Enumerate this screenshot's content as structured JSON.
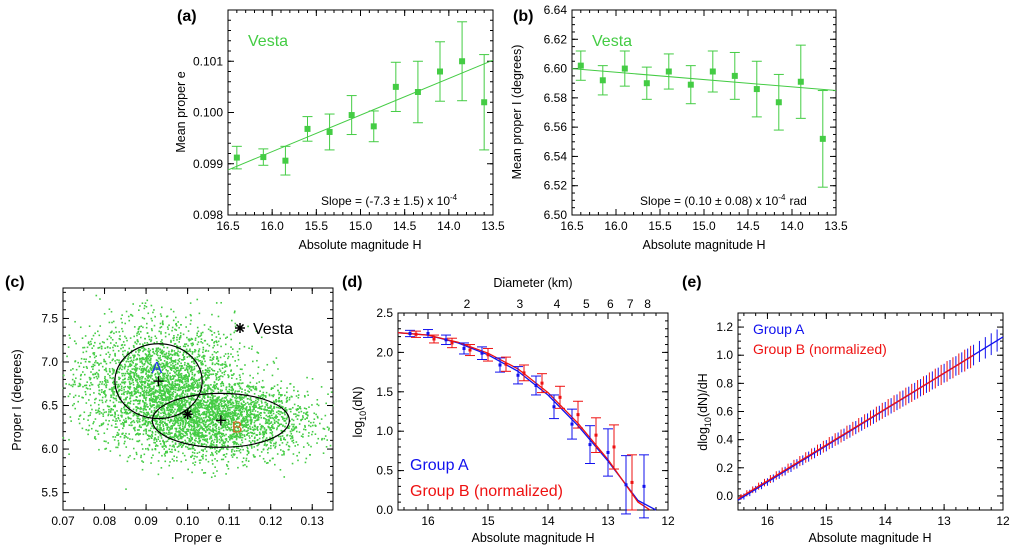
{
  "chart_data": [
    {
      "panel": "(a)",
      "type": "scatter",
      "annotation": "Vesta",
      "slope_text": "Slope = (-7.3 ± 1.5) x 10",
      "slope_exp": "-4",
      "xlabel": "Absolute magnitude H",
      "ylabel": "Mean proper e",
      "xlim": [
        16.5,
        13.5
      ],
      "ylim": [
        0.098,
        0.102
      ],
      "xticks": [
        16.5,
        16.0,
        15.5,
        15.0,
        14.5,
        14.0,
        13.5
      ],
      "yticks": [
        0.098,
        0.099,
        0.1,
        0.101
      ],
      "color": "#44cc44",
      "points": [
        {
          "x": 16.4,
          "y": 0.09912,
          "err": 0.00022
        },
        {
          "x": 16.1,
          "y": 0.09913,
          "err": 0.00016
        },
        {
          "x": 15.85,
          "y": 0.09906,
          "err": 0.00028
        },
        {
          "x": 15.6,
          "y": 0.09968,
          "err": 0.00024
        },
        {
          "x": 15.35,
          "y": 0.09962,
          "err": 0.00035
        },
        {
          "x": 15.1,
          "y": 0.09995,
          "err": 0.00038
        },
        {
          "x": 14.85,
          "y": 0.09973,
          "err": 0.0003
        },
        {
          "x": 14.6,
          "y": 0.1005,
          "err": 0.00048
        },
        {
          "x": 14.35,
          "y": 0.1004,
          "err": 0.0006
        },
        {
          "x": 14.1,
          "y": 0.1008,
          "err": 0.00058
        },
        {
          "x": 13.85,
          "y": 0.101,
          "err": 0.00077
        },
        {
          "x": 13.6,
          "y": 0.1002,
          "err": 0.00093
        }
      ],
      "fit": [
        [
          16.5,
          0.09888
        ],
        [
          13.5,
          0.10102
        ]
      ]
    },
    {
      "panel": "(b)",
      "type": "scatter",
      "annotation": "Vesta",
      "slope_text": "Slope = (0.10 ± 0.08) x 10",
      "slope_exp": "-4",
      "slope_unit": "rad",
      "xlabel": "Absolute magnitude H",
      "ylabel": "Mean proper I (degrees)",
      "xlim": [
        16.5,
        13.5
      ],
      "ylim": [
        6.5,
        6.64
      ],
      "xticks": [
        16.5,
        16.0,
        15.5,
        15.0,
        14.5,
        14.0,
        13.5
      ],
      "yticks": [
        6.5,
        6.52,
        6.54,
        6.56,
        6.58,
        6.6,
        6.62,
        6.64
      ],
      "color": "#44cc44",
      "points": [
        {
          "x": 16.4,
          "y": 6.602,
          "err": 0.01
        },
        {
          "x": 16.15,
          "y": 6.592,
          "err": 0.01
        },
        {
          "x": 15.9,
          "y": 6.6,
          "err": 0.012
        },
        {
          "x": 15.65,
          "y": 6.59,
          "err": 0.011
        },
        {
          "x": 15.4,
          "y": 6.598,
          "err": 0.012
        },
        {
          "x": 15.15,
          "y": 6.589,
          "err": 0.013
        },
        {
          "x": 14.9,
          "y": 6.598,
          "err": 0.014
        },
        {
          "x": 14.65,
          "y": 6.595,
          "err": 0.016
        },
        {
          "x": 14.4,
          "y": 6.586,
          "err": 0.019
        },
        {
          "x": 14.15,
          "y": 6.577,
          "err": 0.019
        },
        {
          "x": 13.9,
          "y": 6.591,
          "err": 0.025
        },
        {
          "x": 13.65,
          "y": 6.552,
          "err": 0.033
        }
      ],
      "fit": [
        [
          16.5,
          6.6
        ],
        [
          13.5,
          6.585
        ]
      ]
    },
    {
      "panel": "(c)",
      "type": "scatter",
      "xlabel": "Proper e",
      "ylabel": "Proper I (degrees)",
      "xlim": [
        0.07,
        0.135
      ],
      "ylim": [
        5.3,
        7.85
      ],
      "xticks": [
        0.07,
        0.08,
        0.09,
        0.1,
        0.11,
        0.12,
        0.13
      ],
      "yticks": [
        5.5,
        6.0,
        6.5,
        7.0,
        7.5
      ],
      "color": "#44cc44",
      "cloud_points": 5000,
      "vesta": {
        "e": 0.1,
        "i": 6.4
      },
      "legend_star_label": "Vesta",
      "group_a": {
        "label": "A",
        "center": [
          0.093,
          6.78
        ],
        "radius": [
          0.0105,
          0.43
        ],
        "color": "#2233ee"
      },
      "group_b": {
        "label": "B",
        "center": [
          0.108,
          6.33
        ],
        "radius": [
          0.0165,
          0.31
        ],
        "color": "#cc6622"
      }
    },
    {
      "panel": "(d)",
      "type": "line",
      "xlabel": "Absolute magnitude H",
      "ylabel": "log10(dN)",
      "top_xlabel": "Diameter (km)",
      "xlim": [
        16.5,
        12.0
      ],
      "ylim": [
        0.0,
        2.5
      ],
      "xticks": [
        16,
        15,
        14,
        13,
        12
      ],
      "yticks": [
        0.0,
        0.5,
        1.0,
        1.5,
        2.0,
        2.5
      ],
      "top_ticks": [
        {
          "d": "2",
          "h": 15.35
        },
        {
          "d": "3",
          "h": 14.47
        },
        {
          "d": "4",
          "h": 13.85
        },
        {
          "d": "5",
          "h": 13.36
        },
        {
          "d": "6",
          "h": 12.96
        },
        {
          "d": "7",
          "h": 12.63
        },
        {
          "d": "8",
          "h": 12.34
        }
      ],
      "series": [
        {
          "name": "Group A",
          "color": "#1111ee",
          "curve": [
            [
              16.5,
              2.25
            ],
            [
              16.0,
              2.22
            ],
            [
              15.5,
              2.12
            ],
            [
              15.0,
              1.97
            ],
            [
              14.5,
              1.76
            ],
            [
              14.0,
              1.46
            ],
            [
              13.5,
              1.07
            ],
            [
              13.0,
              0.62
            ],
            [
              12.5,
              0.12
            ],
            [
              12.2,
              0.0
            ]
          ]
        },
        {
          "name": "Group B (normalized)",
          "color": "#ee1111",
          "curve": [
            [
              16.5,
              2.25
            ],
            [
              16.0,
              2.22
            ],
            [
              15.5,
              2.13
            ],
            [
              15.0,
              1.99
            ],
            [
              14.5,
              1.79
            ],
            [
              14.0,
              1.49
            ],
            [
              13.5,
              1.1
            ],
            [
              13.0,
              0.64
            ],
            [
              12.5,
              0.1
            ],
            [
              12.3,
              0.0
            ]
          ]
        }
      ],
      "points_a": [
        {
          "x": 16.3,
          "y": 2.24,
          "err": 0.04
        },
        {
          "x": 16.0,
          "y": 2.24,
          "err": 0.05
        },
        {
          "x": 15.7,
          "y": 2.16,
          "err": 0.06
        },
        {
          "x": 15.4,
          "y": 2.05,
          "err": 0.07
        },
        {
          "x": 15.1,
          "y": 1.99,
          "err": 0.08
        },
        {
          "x": 14.8,
          "y": 1.84,
          "err": 0.09
        },
        {
          "x": 14.5,
          "y": 1.71,
          "err": 0.11
        },
        {
          "x": 14.2,
          "y": 1.58,
          "err": 0.12
        },
        {
          "x": 13.9,
          "y": 1.31,
          "err": 0.15
        },
        {
          "x": 13.6,
          "y": 1.09,
          "err": 0.19
        },
        {
          "x": 13.3,
          "y": 0.83,
          "err": 0.24
        },
        {
          "x": 13.0,
          "y": 0.73,
          "err": 0.3
        },
        {
          "x": 12.7,
          "y": 0.32,
          "err": 0.37
        },
        {
          "x": 12.4,
          "y": 0.3,
          "err": 0.4
        }
      ],
      "points_b": [
        {
          "x": 16.2,
          "y": 2.23,
          "err": 0.04
        },
        {
          "x": 15.9,
          "y": 2.17,
          "err": 0.05
        },
        {
          "x": 15.6,
          "y": 2.12,
          "err": 0.06
        },
        {
          "x": 15.3,
          "y": 2.03,
          "err": 0.07
        },
        {
          "x": 15.0,
          "y": 1.97,
          "err": 0.08
        },
        {
          "x": 14.7,
          "y": 1.85,
          "err": 0.09
        },
        {
          "x": 14.4,
          "y": 1.74,
          "err": 0.1
        },
        {
          "x": 14.1,
          "y": 1.61,
          "err": 0.12
        },
        {
          "x": 13.8,
          "y": 1.43,
          "err": 0.14
        },
        {
          "x": 13.5,
          "y": 1.21,
          "err": 0.17
        },
        {
          "x": 13.2,
          "y": 0.95,
          "err": 0.22
        },
        {
          "x": 12.9,
          "y": 0.8,
          "err": 0.28
        },
        {
          "x": 12.6,
          "y": 0.35,
          "err": 0.35
        }
      ]
    },
    {
      "panel": "(e)",
      "type": "line",
      "xlabel": "Absolute magnitude H",
      "ylabel": "dlog10(dN)/dH",
      "xlim": [
        16.5,
        12.0
      ],
      "ylim": [
        -0.1,
        1.3
      ],
      "xticks": [
        16,
        15,
        14,
        13,
        12
      ],
      "yticks": [
        0.0,
        0.2,
        0.4,
        0.6,
        0.8,
        1.0,
        1.2
      ],
      "series": [
        {
          "name": "Group A",
          "color": "#1111ee",
          "line": [
            [
              16.5,
              -0.03
            ],
            [
              12.0,
              1.13
            ]
          ]
        },
        {
          "name": "Group B (normalized)",
          "color": "#ee1111",
          "line": [
            [
              16.5,
              -0.02
            ],
            [
              12.5,
              1.0
            ]
          ]
        }
      ],
      "bar_step": 0.1
    }
  ]
}
